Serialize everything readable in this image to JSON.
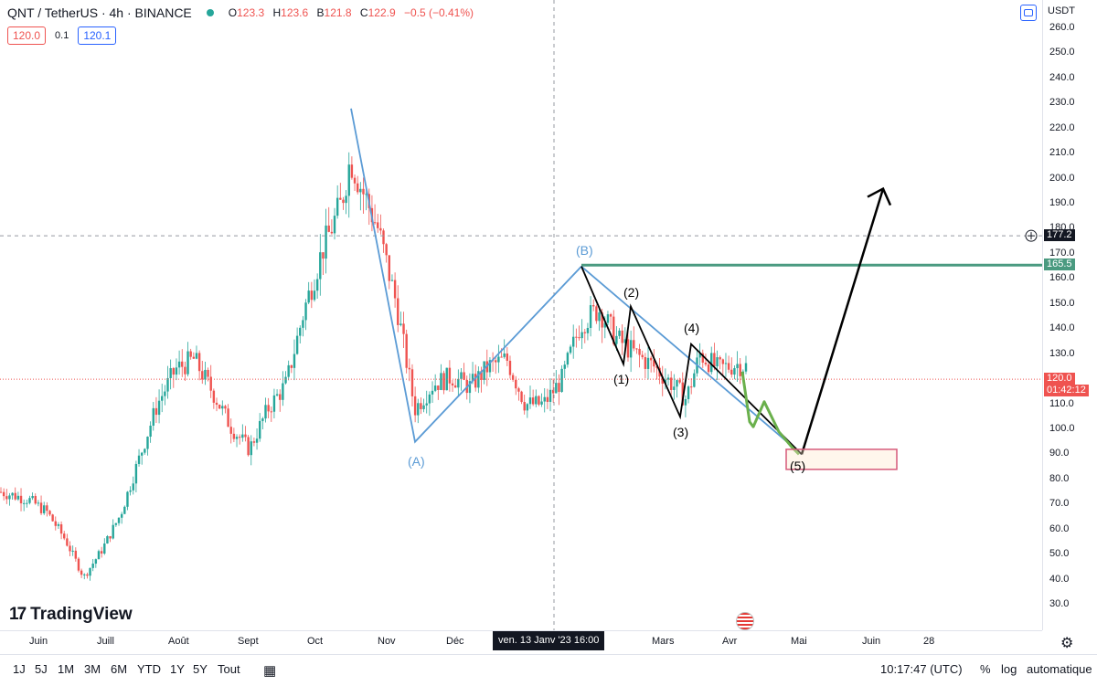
{
  "header": {
    "title": "QNT / TetherUS · 4h · BINANCE",
    "ohlc": {
      "o_label": "O",
      "o": "123.3",
      "h_label": "H",
      "h": "123.6",
      "l_label": "B",
      "l": "121.8",
      "c_label": "C",
      "c": "122.9",
      "change": "−0.5 (−0.41%)"
    },
    "sell_price": "120.0",
    "spread": "0.1",
    "buy_price": "120.1"
  },
  "price_axis": {
    "currency": "USDT",
    "ticks": [
      "260.0",
      "250.0",
      "240.0",
      "230.0",
      "220.0",
      "210.0",
      "200.0",
      "190.0",
      "180.0",
      "170.0",
      "160.0",
      "150.0",
      "140.0",
      "130.0",
      "120.0",
      "110.0",
      "100.0",
      "90.0",
      "80.0",
      "70.0",
      "60.0",
      "50.0",
      "40.0",
      "30.0"
    ],
    "crosshair_label": "177.2",
    "resistance_label": "165.5",
    "last_price_label": "120.0",
    "countdown_label": "01:42:12"
  },
  "time_axis": {
    "ticks": [
      "Juin",
      "Juill",
      "Août",
      "Sept",
      "Oct",
      "Nov",
      "Déc",
      "Mars",
      "Avr",
      "Mai",
      "Juin",
      "28"
    ],
    "hover_label": "ven. 13 Janv '23   16:00"
  },
  "annotations": {
    "A": "(A)",
    "B": "(B)",
    "w1": "(1)",
    "w2": "(2)",
    "w3": "(3)",
    "w4": "(4)",
    "w5": "(5)"
  },
  "toolbar": {
    "timeframes": [
      "1J",
      "5J",
      "1M",
      "3M",
      "6M",
      "YTD",
      "1Y",
      "5Y",
      "Tout"
    ],
    "clock": "10:17:47 (UTC)",
    "percent": "%",
    "log": "log",
    "auto": "automatique"
  },
  "branding": {
    "logo_text": "TradingView"
  },
  "colors": {
    "up": "#26a69a",
    "down": "#ef5350",
    "wave_blue": "#5b9bd5",
    "resistance": "#4a9a80",
    "target_box": "#d65a7a",
    "path_green": "#6ab04c"
  },
  "chart_data": {
    "type": "candlestick",
    "symbol": "QNT / TetherUS",
    "interval": "4h",
    "ylim": [
      25,
      265
    ],
    "key_levels": {
      "resistance": 165.5,
      "last_price": 120.0,
      "crosshair": 177.2
    },
    "waves": {
      "A_low": 95,
      "A_start_high": 228,
      "B_high": 165,
      "w1": 126,
      "w2": 149,
      "w3": 105,
      "w4": 134,
      "w5": 90,
      "projection_target": 196
    },
    "target_zone": [
      84,
      92
    ],
    "price_path": [
      [
        0.0,
        75
      ],
      [
        0.03,
        72
      ],
      [
        0.05,
        67
      ],
      [
        0.07,
        56
      ],
      [
        0.09,
        41
      ],
      [
        0.11,
        52
      ],
      [
        0.13,
        66
      ],
      [
        0.15,
        88
      ],
      [
        0.17,
        110
      ],
      [
        0.19,
        124
      ],
      [
        0.21,
        128
      ],
      [
        0.23,
        115
      ],
      [
        0.25,
        101
      ],
      [
        0.27,
        92
      ],
      [
        0.29,
        108
      ],
      [
        0.31,
        118
      ],
      [
        0.33,
        148
      ],
      [
        0.35,
        172
      ],
      [
        0.37,
        190
      ],
      [
        0.38,
        208
      ],
      [
        0.39,
        198
      ],
      [
        0.41,
        180
      ],
      [
        0.43,
        150
      ],
      [
        0.45,
        108
      ],
      [
        0.47,
        118
      ],
      [
        0.49,
        121
      ],
      [
        0.51,
        117
      ],
      [
        0.53,
        125
      ],
      [
        0.55,
        128
      ],
      [
        0.57,
        110
      ],
      [
        0.59,
        110
      ],
      [
        0.61,
        120
      ],
      [
        0.63,
        142
      ],
      [
        0.65,
        148
      ],
      [
        0.67,
        136
      ],
      [
        0.69,
        130
      ],
      [
        0.71,
        125
      ],
      [
        0.73,
        118
      ],
      [
        0.745,
        112
      ],
      [
        0.76,
        130
      ],
      [
        0.78,
        124
      ],
      [
        0.8,
        126
      ],
      [
        0.81,
        125
      ]
    ]
  }
}
